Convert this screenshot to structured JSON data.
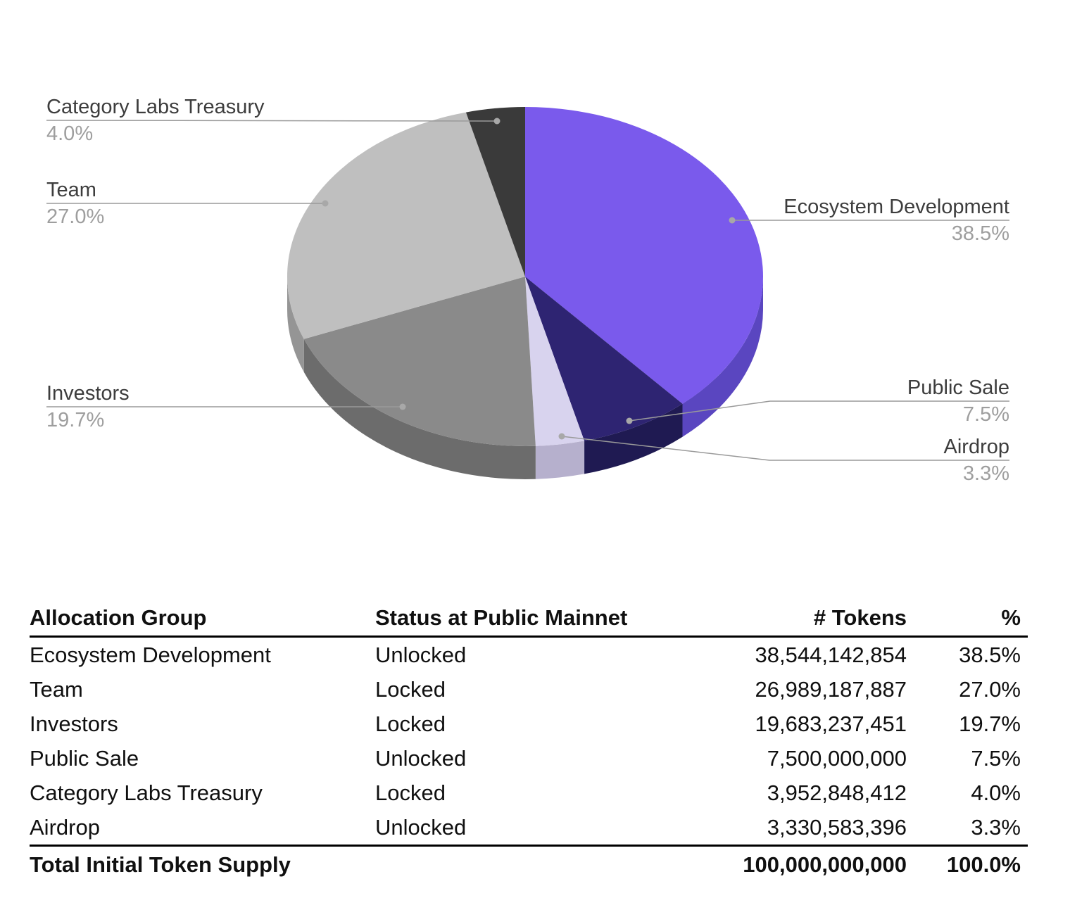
{
  "chart_data": {
    "type": "pie",
    "style": "3d",
    "title": "",
    "direction": "clockwise",
    "start_angle_deg": 0,
    "legend_position": "outside-callouts",
    "slices": [
      {
        "label": "Ecosystem Development",
        "value": 38.5,
        "pct_label": "38.5%",
        "color": "#7a5aec",
        "side_color": "#5a46c0"
      },
      {
        "label": "Public Sale",
        "value": 7.5,
        "pct_label": "7.5%",
        "color": "#2e2472",
        "side_color": "#1f1a52"
      },
      {
        "label": "Airdrop",
        "value": 3.3,
        "pct_label": "3.3%",
        "color": "#d8d3ee",
        "side_color": "#b6b0cd"
      },
      {
        "label": "Investors",
        "value": 19.7,
        "pct_label": "19.7%",
        "color": "#8a8a8a",
        "side_color": "#6c6c6c"
      },
      {
        "label": "Team",
        "value": 27.0,
        "pct_label": "27.0%",
        "color": "#bfbfbf",
        "side_color": "#959595"
      },
      {
        "label": "Category Labs Treasury",
        "value": 4.0,
        "pct_label": "4.0%",
        "color": "#3a3a3a",
        "side_color": "#2a2a2a"
      }
    ],
    "callout_text_color": "#3d3d3d",
    "callout_pct_color": "#9e9e9e",
    "leader_line_color": "#9a9a9a"
  },
  "table": {
    "headers": [
      "Allocation Group",
      "Status at Public Mainnet",
      "# Tokens",
      "%"
    ],
    "rows": [
      [
        "Ecosystem Development",
        "Unlocked",
        "38,544,142,854",
        "38.5%"
      ],
      [
        "Team",
        "Locked",
        "26,989,187,887",
        "27.0%"
      ],
      [
        "Investors",
        "Locked",
        "19,683,237,451",
        "19.7%"
      ],
      [
        "Public Sale",
        "Unlocked",
        "7,500,000,000",
        "7.5%"
      ],
      [
        "Category Labs Treasury",
        "Locked",
        "3,952,848,412",
        "4.0%"
      ],
      [
        "Airdrop",
        "Unlocked",
        "3,330,583,396",
        "3.3%"
      ]
    ],
    "total": {
      "label": "Total Initial Token Supply",
      "status": "",
      "tokens": "100,000,000,000",
      "pct": "100.0%"
    }
  }
}
